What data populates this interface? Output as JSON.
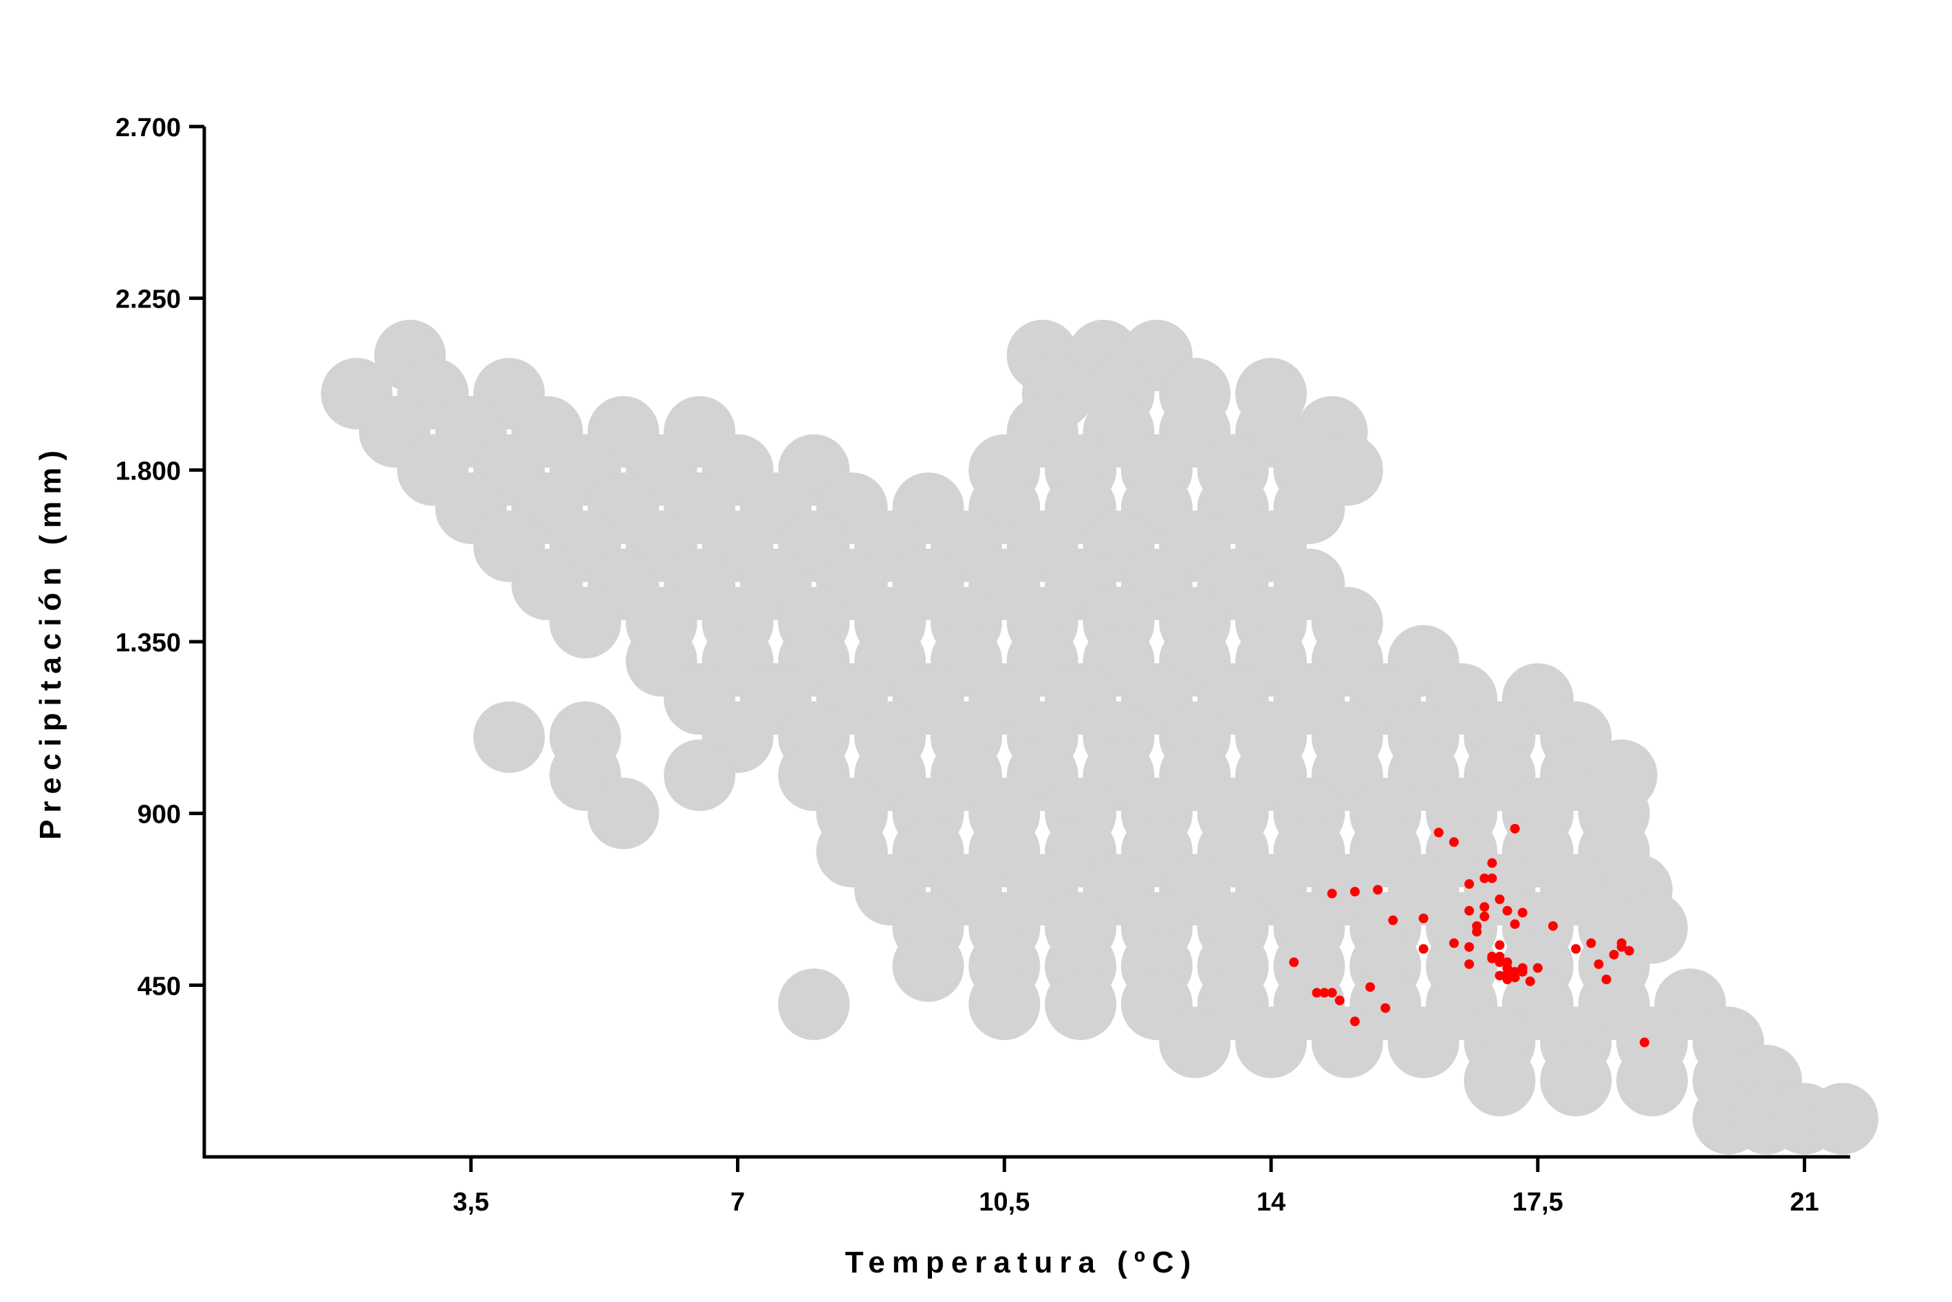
{
  "chart_data": {
    "type": "scatter",
    "x_label": "Temperatura (ºC)",
    "y_label": "Precipitación (mm)",
    "xlim": [
      0,
      21.6
    ],
    "ylim": [
      0,
      2700
    ],
    "xticks": [
      {
        "value": 3.5,
        "label": "3,5"
      },
      7,
      {
        "value": 10.5,
        "label": "10,5"
      },
      14,
      {
        "value": 17.5,
        "label": "17,5"
      },
      21
    ],
    "yticks": [
      450,
      900,
      {
        "value": 1350,
        "label": "1.350"
      },
      {
        "value": 1800,
        "label": "1.800"
      },
      {
        "value": 2250,
        "label": "2.250"
      },
      {
        "value": 2700,
        "label": "2.700"
      }
    ],
    "series": [
      {
        "color": "#d3d3d3",
        "x": [
          2.7,
          11,
          11.8,
          12.5,
          2,
          3,
          4,
          11.2,
          12,
          13,
          14,
          2.5,
          3.5,
          4.5,
          5.5,
          6.5,
          11,
          12,
          13,
          14,
          14.8,
          3,
          4,
          5,
          6,
          7,
          8,
          10.5,
          11.5,
          12.5,
          13.5,
          14.5,
          15,
          3.5,
          4.5,
          5.5,
          6.5,
          7.5,
          8.5,
          9.5,
          10.5,
          11.5,
          12.5,
          13.5,
          14.5,
          4,
          5,
          6,
          7,
          8,
          9,
          10,
          11,
          12,
          13,
          14,
          4.5,
          5.5,
          6.5,
          7.5,
          8.5,
          9.5,
          10.5,
          11.5,
          12.5,
          13.5,
          14.5,
          5,
          6,
          7,
          8,
          9,
          10,
          11,
          12,
          13,
          14,
          15,
          6,
          7,
          8,
          9,
          10,
          11,
          12,
          13,
          14,
          15,
          16,
          6.5,
          7.5,
          8.5,
          9.5,
          10.5,
          11.5,
          12.5,
          13.5,
          14.5,
          15.5,
          16.5,
          17.5,
          4,
          5,
          7,
          8,
          9,
          10,
          11,
          12,
          13,
          14,
          15,
          16,
          17,
          18,
          5,
          6.5,
          8,
          9,
          10,
          11,
          12,
          13,
          14,
          15,
          16,
          17,
          18,
          18.6,
          5.5,
          8.5,
          9.5,
          10.5,
          11.5,
          12.5,
          13.5,
          14.5,
          15.5,
          16.5,
          17.5,
          18.5,
          8.5,
          9.5,
          10.5,
          11.5,
          12.5,
          13.5,
          14.5,
          15.5,
          16.5,
          17.5,
          18.5,
          9,
          10,
          11,
          12,
          13,
          14,
          15,
          16,
          17,
          18,
          18.8,
          9.5,
          10.5,
          11.5,
          12.5,
          13.5,
          14.5,
          15.5,
          16.5,
          17.5,
          18.5,
          19,
          9.5,
          10.5,
          11.5,
          12.5,
          13.5,
          14.5,
          15.5,
          16.5,
          17.5,
          18.5,
          8,
          10.5,
          11.5,
          12.5,
          13.5,
          14.5,
          15.5,
          16.5,
          17.5,
          18.5,
          19.5,
          13,
          14,
          15,
          16,
          17,
          18,
          19,
          20,
          17,
          18,
          19,
          20,
          20.5,
          20,
          20.5,
          21,
          21.5
        ],
        "values": [
          2100,
          2100,
          2100,
          2100,
          2000,
          2000,
          2000,
          2000,
          2000,
          2000,
          2000,
          1900,
          1900,
          1900,
          1900,
          1900,
          1900,
          1900,
          1900,
          1900,
          1900,
          1800,
          1800,
          1800,
          1800,
          1800,
          1800,
          1800,
          1800,
          1800,
          1800,
          1800,
          1800,
          1700,
          1700,
          1700,
          1700,
          1700,
          1700,
          1700,
          1700,
          1700,
          1700,
          1700,
          1700,
          1600,
          1600,
          1600,
          1600,
          1600,
          1600,
          1600,
          1600,
          1600,
          1600,
          1600,
          1500,
          1500,
          1500,
          1500,
          1500,
          1500,
          1500,
          1500,
          1500,
          1500,
          1500,
          1400,
          1400,
          1400,
          1400,
          1400,
          1400,
          1400,
          1400,
          1400,
          1400,
          1400,
          1300,
          1300,
          1300,
          1300,
          1300,
          1300,
          1300,
          1300,
          1300,
          1300,
          1300,
          1200,
          1200,
          1200,
          1200,
          1200,
          1200,
          1200,
          1200,
          1200,
          1200,
          1200,
          1200,
          1100,
          1100,
          1100,
          1100,
          1100,
          1100,
          1100,
          1100,
          1100,
          1100,
          1100,
          1100,
          1100,
          1100,
          1000,
          1000,
          1000,
          1000,
          1000,
          1000,
          1000,
          1000,
          1000,
          1000,
          1000,
          1000,
          1000,
          1000,
          900,
          900,
          900,
          900,
          900,
          900,
          900,
          900,
          900,
          900,
          900,
          900,
          800,
          800,
          800,
          800,
          800,
          800,
          800,
          800,
          800,
          800,
          800,
          700,
          700,
          700,
          700,
          700,
          700,
          700,
          700,
          700,
          700,
          700,
          600,
          600,
          600,
          600,
          600,
          600,
          600,
          600,
          600,
          600,
          600,
          500,
          500,
          500,
          500,
          500,
          500,
          500,
          500,
          500,
          500,
          400,
          400,
          400,
          400,
          400,
          400,
          400,
          400,
          400,
          400,
          400,
          300,
          300,
          300,
          300,
          300,
          300,
          300,
          300,
          200,
          200,
          200,
          200,
          200,
          100,
          100,
          100,
          100
        ]
      },
      {
        "color": "#ff0000",
        "x": [
          14.3,
          14.6,
          14.7,
          14.8,
          14.9,
          15.1,
          15.3,
          15.5,
          14.8,
          15.1,
          15.4,
          15.6,
          16.0,
          16.0,
          16.2,
          16.4,
          16.4,
          16.6,
          16.6,
          16.6,
          16.6,
          16.7,
          16.7,
          16.8,
          16.8,
          16.8,
          16.9,
          16.9,
          17.0,
          17.0,
          17.0,
          17.1,
          17.2,
          17.2,
          17.3,
          16.9,
          17.0,
          17.1,
          17.1,
          17.1,
          17.2,
          17.3,
          17.3,
          17.4,
          17.5,
          17.0,
          17.1,
          17.7,
          18.0,
          18.2,
          18.3,
          18.4,
          18.5,
          18.6,
          18.6,
          18.7,
          18.9,
          16.9,
          17.2
        ],
        "values": [
          510,
          430,
          430,
          430,
          410,
          355,
          445,
          390,
          690,
          695,
          700,
          620,
          625,
          545,
          850,
          825,
          560,
          715,
          645,
          505,
          550,
          605,
          590,
          655,
          630,
          730,
          730,
          770,
          675,
          525,
          555,
          645,
          610,
          860,
          640,
          525,
          510,
          495,
          480,
          510,
          485,
          495,
          485,
          460,
          495,
          475,
          465,
          605,
          545,
          560,
          505,
          465,
          530,
          550,
          560,
          540,
          300,
          520,
          470
        ]
      }
    ]
  }
}
